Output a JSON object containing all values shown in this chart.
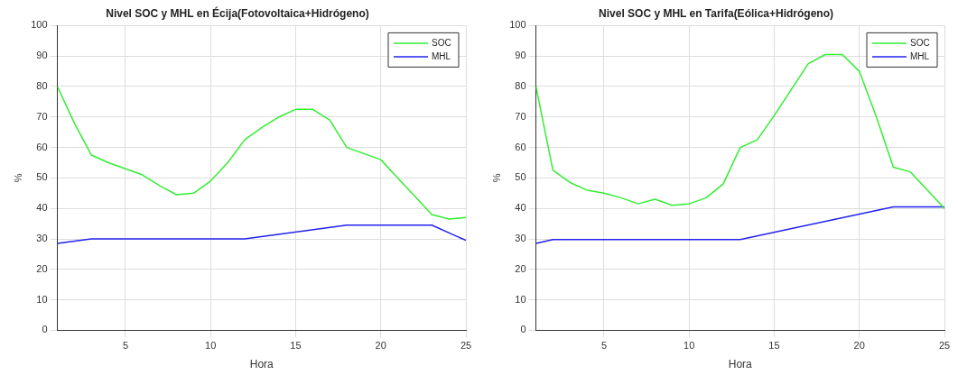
{
  "chart_data": [
    {
      "type": "line",
      "title": "Nivel SOC y MHL en Écija(Fotovoltaica+Hidrógeno)",
      "xlabel": "Hora",
      "ylabel": "%",
      "xlim": [
        1,
        25
      ],
      "xticks": [
        5,
        10,
        15,
        20,
        25
      ],
      "ylim": [
        0,
        100
      ],
      "yticks": [
        0,
        10,
        20,
        30,
        40,
        50,
        60,
        70,
        80,
        90,
        100
      ],
      "grid": true,
      "legend": "top right",
      "series": [
        {
          "name": "SOC",
          "color": "#33ee33",
          "x": [
            1,
            2,
            3,
            4,
            5,
            6,
            7,
            8,
            9,
            10,
            11,
            12,
            13,
            14,
            15,
            16,
            17,
            18,
            19,
            20,
            21,
            22,
            23,
            24,
            25
          ],
          "values": [
            80,
            68,
            57.5,
            55,
            53,
            51,
            47.5,
            44.5,
            45,
            49,
            55,
            62.5,
            66.5,
            70,
            72.5,
            72.5,
            69,
            60,
            58,
            56,
            50,
            44,
            38,
            36.5,
            37
          ]
        },
        {
          "name": "MHL",
          "color": "#2222ee",
          "x": [
            1,
            3,
            12,
            18,
            23,
            25
          ],
          "values": [
            28.5,
            30,
            30,
            34.5,
            34.5,
            29.5
          ]
        }
      ]
    },
    {
      "type": "line",
      "title": "Nivel SOC y MHL en Tarifa(Eólica+Hidrógeno)",
      "xlabel": "Hora",
      "ylabel": "%",
      "xlim": [
        1,
        25
      ],
      "xticks": [
        5,
        10,
        15,
        20,
        25
      ],
      "ylim": [
        0,
        100
      ],
      "yticks": [
        0,
        10,
        20,
        30,
        40,
        50,
        60,
        70,
        80,
        90,
        100
      ],
      "grid": true,
      "legend": "top right",
      "series": [
        {
          "name": "SOC",
          "color": "#33ee33",
          "x": [
            1,
            2,
            3,
            4,
            5,
            6,
            7,
            8,
            9,
            10,
            11,
            12,
            13,
            14,
            15,
            16,
            17,
            18,
            19,
            20,
            21,
            22,
            23,
            24,
            25
          ],
          "values": [
            80,
            52.5,
            48.5,
            46,
            45,
            43.5,
            41.5,
            43,
            41,
            41.5,
            43.5,
            48,
            60,
            62.5,
            70.5,
            79,
            87.5,
            90.5,
            90.5,
            85,
            70,
            53.5,
            52,
            46,
            40
          ]
        },
        {
          "name": "MHL",
          "color": "#2222ee",
          "x": [
            1,
            2,
            13,
            22,
            25
          ],
          "values": [
            28.5,
            29.8,
            29.8,
            40.5,
            40.5
          ]
        }
      ]
    }
  ]
}
